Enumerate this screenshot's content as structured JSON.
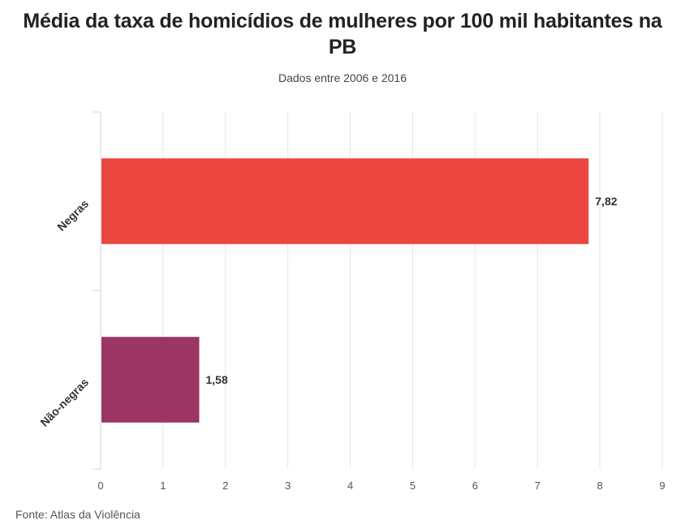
{
  "chart_data": {
    "type": "bar",
    "orientation": "horizontal",
    "title": "Média da taxa de homicídios de mulheres por 100 mil habitantes na PB",
    "subtitle": "Dados entre 2006 e 2016",
    "categories": [
      "Negras",
      "Não-negras"
    ],
    "values": [
      7.82,
      1.58
    ],
    "value_labels": [
      "7,82",
      "1,58"
    ],
    "colors": [
      "#eb4640",
      "#9b3564"
    ],
    "xlim": [
      0,
      9
    ],
    "xticks": [
      0,
      1,
      2,
      3,
      4,
      5,
      6,
      7,
      8,
      9
    ],
    "grid": true,
    "source": "Fonte: Atlas da Violência"
  }
}
